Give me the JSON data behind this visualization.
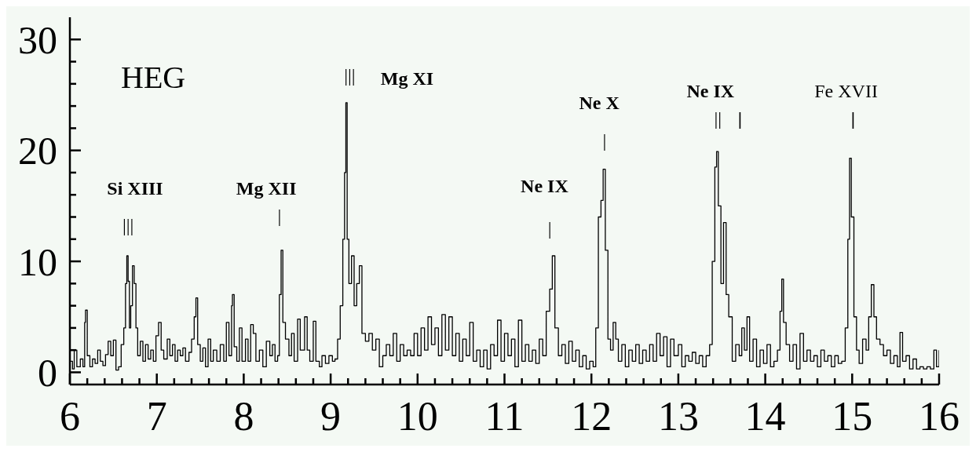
{
  "chart_data": {
    "type": "step",
    "color": "#000000",
    "xlim": [
      6,
      16
    ],
    "ylim": [
      -1.1,
      32
    ],
    "xticks": [
      6,
      {
        "value": 6.2,
        "label": null
      },
      {
        "value": 6.4,
        "label": null
      },
      {
        "value": 6.6,
        "label": null
      },
      {
        "value": 6.8,
        "label": null
      },
      7,
      {
        "value": 7.2,
        "label": null
      },
      {
        "value": 7.4,
        "label": null
      },
      {
        "value": 7.6,
        "label": null
      },
      {
        "value": 7.8,
        "label": null
      },
      8,
      {
        "value": 8.2,
        "label": null
      },
      {
        "value": 8.4,
        "label": null
      },
      {
        "value": 8.6,
        "label": null
      },
      {
        "value": 8.8,
        "label": null
      },
      9,
      {
        "value": 9.2,
        "label": null
      },
      {
        "value": 9.4,
        "label": null
      },
      {
        "value": 9.6,
        "label": null
      },
      {
        "value": 9.8,
        "label": null
      },
      10,
      {
        "value": 10.2,
        "label": null
      },
      {
        "value": 10.4,
        "label": null
      },
      {
        "value": 10.6,
        "label": null
      },
      {
        "value": 10.8,
        "label": null
      },
      11,
      {
        "value": 11.2,
        "label": null
      },
      {
        "value": 11.4,
        "label": null
      },
      {
        "value": 11.6,
        "label": null
      },
      {
        "value": 11.8,
        "label": null
      },
      12,
      {
        "value": 12.2,
        "label": null
      },
      {
        "value": 12.4,
        "label": null
      },
      {
        "value": 12.6,
        "label": null
      },
      {
        "value": 12.8,
        "label": null
      },
      13,
      {
        "value": 13.2,
        "label": null
      },
      {
        "value": 13.4,
        "label": null
      },
      {
        "value": 13.6,
        "label": null
      },
      {
        "value": 13.8,
        "label": null
      },
      14,
      {
        "value": 14.2,
        "label": null
      },
      {
        "value": 14.4,
        "label": null
      },
      {
        "value": 14.6,
        "label": null
      },
      {
        "value": 14.8,
        "label": null
      },
      15,
      {
        "value": 15.2,
        "label": null
      },
      {
        "value": 15.4,
        "label": null
      },
      {
        "value": 15.6,
        "label": null
      },
      {
        "value": 15.8,
        "label": null
      },
      16
    ],
    "yticks": [
      0,
      {
        "value": 2,
        "label": null
      },
      {
        "value": 4,
        "label": null
      },
      {
        "value": 6,
        "label": null
      },
      {
        "value": 8,
        "label": null
      },
      10,
      {
        "value": 12,
        "label": null
      },
      {
        "value": 14,
        "label": null
      },
      {
        "value": 16,
        "label": null
      },
      {
        "value": 18,
        "label": null
      },
      20,
      {
        "value": 22,
        "label": null
      },
      {
        "value": 24,
        "label": null
      },
      {
        "value": 26,
        "label": null
      },
      {
        "value": 28,
        "label": null
      },
      30
    ],
    "x": [
      6.0,
      6.03,
      6.05,
      6.08,
      6.12,
      6.15,
      6.17,
      6.18,
      6.2,
      6.23,
      6.26,
      6.29,
      6.32,
      6.35,
      6.38,
      6.41,
      6.44,
      6.47,
      6.5,
      6.53,
      6.56,
      6.59,
      6.62,
      6.64,
      6.655,
      6.67,
      6.685,
      6.7,
      6.72,
      6.74,
      6.76,
      6.78,
      6.81,
      6.84,
      6.87,
      6.9,
      6.93,
      6.96,
      6.99,
      7.02,
      7.05,
      7.08,
      7.12,
      7.15,
      7.18,
      7.21,
      7.24,
      7.27,
      7.3,
      7.33,
      7.37,
      7.4,
      7.43,
      7.45,
      7.47,
      7.5,
      7.53,
      7.56,
      7.59,
      7.62,
      7.65,
      7.69,
      7.73,
      7.77,
      7.8,
      7.83,
      7.86,
      7.87,
      7.89,
      7.92,
      7.95,
      7.98,
      8.02,
      8.05,
      8.08,
      8.11,
      8.14,
      8.18,
      8.22,
      8.26,
      8.3,
      8.33,
      8.36,
      8.39,
      8.41,
      8.43,
      8.45,
      8.48,
      8.52,
      8.55,
      8.58,
      8.62,
      8.65,
      8.7,
      8.73,
      8.76,
      8.8,
      8.83,
      8.87,
      8.9,
      8.94,
      8.98,
      9.02,
      9.05,
      9.08,
      9.11,
      9.14,
      9.16,
      9.175,
      9.19,
      9.21,
      9.24,
      9.27,
      9.3,
      9.33,
      9.36,
      9.4,
      9.44,
      9.48,
      9.52,
      9.56,
      9.6,
      9.64,
      9.68,
      9.72,
      9.76,
      9.8,
      9.84,
      9.88,
      9.92,
      9.96,
      10.0,
      10.04,
      10.08,
      10.12,
      10.16,
      10.2,
      10.24,
      10.28,
      10.32,
      10.36,
      10.4,
      10.44,
      10.48,
      10.52,
      10.56,
      10.6,
      10.64,
      10.68,
      10.72,
      10.76,
      10.8,
      10.84,
      10.88,
      10.92,
      10.96,
      11.0,
      11.04,
      11.08,
      11.12,
      11.16,
      11.2,
      11.24,
      11.28,
      11.32,
      11.36,
      11.4,
      11.44,
      11.48,
      11.52,
      11.55,
      11.58,
      11.62,
      11.66,
      11.7,
      11.74,
      11.78,
      11.82,
      11.86,
      11.9,
      11.94,
      11.98,
      12.02,
      12.05,
      12.08,
      12.11,
      12.135,
      12.16,
      12.19,
      12.22,
      12.25,
      12.28,
      12.31,
      12.35,
      12.39,
      12.43,
      12.47,
      12.51,
      12.55,
      12.59,
      12.63,
      12.67,
      12.71,
      12.75,
      12.79,
      12.83,
      12.87,
      12.91,
      12.95,
      13.0,
      13.04,
      13.08,
      13.12,
      13.16,
      13.2,
      13.24,
      13.28,
      13.32,
      13.36,
      13.39,
      13.42,
      13.44,
      13.46,
      13.49,
      13.52,
      13.55,
      13.58,
      13.62,
      13.66,
      13.7,
      13.73,
      13.76,
      13.79,
      13.82,
      13.86,
      13.9,
      13.94,
      13.98,
      14.02,
      14.06,
      14.1,
      14.14,
      14.17,
      14.19,
      14.21,
      14.24,
      14.28,
      14.32,
      14.36,
      14.4,
      14.44,
      14.48,
      14.52,
      14.56,
      14.6,
      14.64,
      14.68,
      14.72,
      14.76,
      14.8,
      14.84,
      14.88,
      14.92,
      14.95,
      14.97,
      14.99,
      15.02,
      15.05,
      15.08,
      15.12,
      15.16,
      15.19,
      15.22,
      15.25,
      15.28,
      15.32,
      15.36,
      15.4,
      15.44,
      15.48,
      15.52,
      15.55,
      15.58,
      15.62,
      15.66,
      15.7,
      15.74,
      15.78,
      15.82,
      15.86,
      15.9,
      15.94,
      15.97,
      16.0
    ],
    "values": [
      1,
      0.3,
      2,
      0.5,
      1.2,
      0.5,
      4.5,
      5.6,
      1.5,
      0.5,
      1.2,
      0.8,
      2,
      1,
      0.6,
      1.6,
      2.8,
      1.5,
      2.9,
      0.2,
      0.5,
      2.5,
      4,
      8,
      10.5,
      8.2,
      4,
      6,
      9.6,
      8,
      4,
      1.5,
      2.8,
      1,
      2.5,
      1.2,
      2,
      1,
      3.3,
      4.5,
      2,
      1.2,
      3,
      1.5,
      2.5,
      1,
      2,
      1.5,
      2.2,
      1,
      1.8,
      3,
      5,
      6.7,
      2.5,
      1,
      2.2,
      0.5,
      3,
      1,
      2,
      1,
      2.5,
      1,
      4.5,
      1.5,
      6,
      7,
      2.3,
      1,
      4,
      1,
      3,
      1,
      4.3,
      3.5,
      1,
      2,
      0.5,
      2.8,
      1.5,
      2.5,
      1,
      1.5,
      7,
      11,
      4.5,
      3,
      1.5,
      3.5,
      1,
      4.8,
      2,
      5,
      2,
      1,
      4.6,
      1,
      0.5,
      1.5,
      0.8,
      1.5,
      1,
      1.2,
      3,
      6,
      12,
      18,
      24.3,
      12,
      8,
      10.5,
      6,
      8,
      9.6,
      3.5,
      2.8,
      3.5,
      2,
      3,
      0.5,
      1.5,
      2.5,
      1.5,
      3.5,
      1,
      2.5,
      1.5,
      2,
      1.5,
      3.5,
      1.5,
      4,
      2,
      5,
      2.5,
      4,
      1.5,
      5.2,
      2,
      5,
      1.5,
      3.5,
      1,
      3,
      1.5,
      4.5,
      1,
      2,
      0.5,
      2,
      0.3,
      2.5,
      1.5,
      4.7,
      1,
      3.5,
      1.5,
      3,
      0.5,
      4.7,
      1,
      2.5,
      1,
      2,
      0.8,
      3,
      1.5,
      5.5,
      7.5,
      10.5,
      4,
      1.5,
      2.5,
      0.8,
      2.8,
      1,
      2,
      0.5,
      1.5,
      0.3,
      1,
      0.5,
      4,
      14,
      15.5,
      18.3,
      11,
      3,
      2,
      4.5,
      3,
      1,
      2.5,
      0.5,
      2,
      1,
      2.5,
      0.8,
      2,
      1,
      2.5,
      1,
      3.5,
      1.5,
      3.2,
      0.5,
      3,
      1.5,
      2.5,
      0.5,
      1.5,
      1,
      1.8,
      0.8,
      1.5,
      0.5,
      1.5,
      2.5,
      10,
      18.5,
      19.9,
      15,
      8,
      13.5,
      7,
      5,
      1,
      2.5,
      1.5,
      4,
      2,
      5,
      1,
      3,
      0.5,
      2,
      0.8,
      2.5,
      0.5,
      1,
      2,
      5.5,
      8.4,
      4.5,
      2.5,
      1,
      2.5,
      0.3,
      3.5,
      1,
      2,
      1,
      1.5,
      0.5,
      2,
      1,
      1.5,
      0.5,
      1.5,
      0.8,
      1,
      4,
      12,
      19.3,
      14,
      5,
      2,
      0.8,
      3,
      2,
      5,
      7.9,
      5,
      3,
      2.5,
      1.5,
      2,
      0.8,
      1.5,
      0.5,
      3.6,
      1,
      1.5,
      0.3,
      1.2,
      0.3,
      0.5,
      0.3,
      0.5,
      0.3,
      2,
      0.5,
      2
    ],
    "annotations": [
      "HEG",
      "Si XIII",
      "|||",
      "Mg XII",
      "|",
      "Mg XI",
      "|||",
      "Ne IX",
      "|",
      "Ne X",
      "|",
      "Ne IX",
      "||",
      "|",
      "Fe XVII",
      "|"
    ]
  }
}
